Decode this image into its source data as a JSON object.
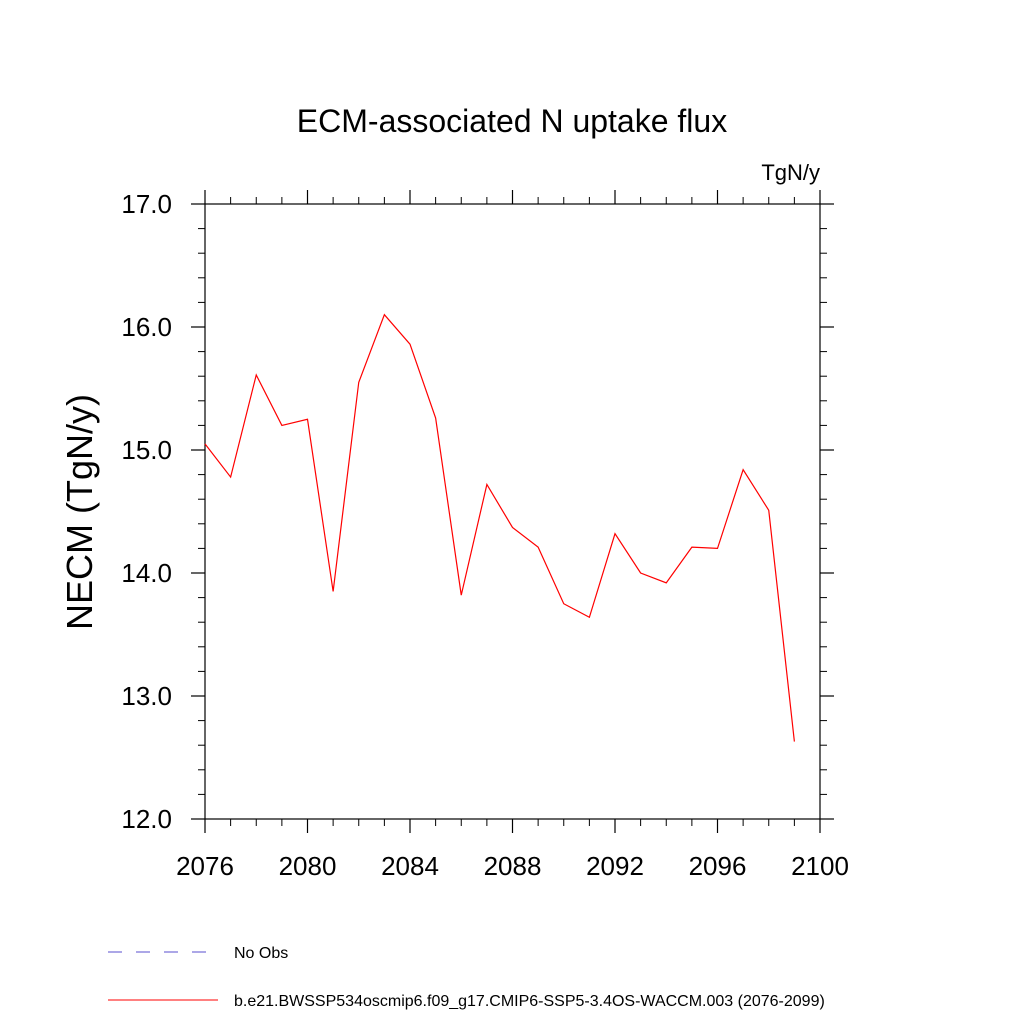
{
  "chart_data": {
    "type": "line",
    "title": "ECM-associated N uptake flux",
    "units": "TgN/y",
    "ylabel": "NECM  (TgN/y)",
    "xlabel": "",
    "xlim": [
      2076,
      2100
    ],
    "ylim": [
      12.0,
      17.0
    ],
    "xticks": [
      2076,
      2080,
      2084,
      2088,
      2092,
      2096,
      2100
    ],
    "xtick_labels": [
      "2076",
      "2080",
      "2084",
      "2088",
      "2092",
      "2096",
      "2100"
    ],
    "yticks": [
      12.0,
      13.0,
      14.0,
      15.0,
      16.0,
      17.0
    ],
    "ytick_labels": [
      "12.0",
      "13.0",
      "14.0",
      "15.0",
      "16.0",
      "17.0"
    ],
    "grid": false,
    "legend_position": "bottom",
    "series": [
      {
        "name": "b.e21.BWSSP534oscmip6.f09_g17.CMIP6-SSP5-3.4OS-WACCM.003 (2076-2099)",
        "color": "#ff0000",
        "dash": "solid",
        "x": [
          2076,
          2077,
          2078,
          2079,
          2080,
          2081,
          2082,
          2083,
          2084,
          2085,
          2086,
          2087,
          2088,
          2089,
          2090,
          2091,
          2092,
          2093,
          2094,
          2095,
          2096,
          2097,
          2098,
          2099
        ],
        "values": [
          15.05,
          14.78,
          15.61,
          15.2,
          15.25,
          13.85,
          15.55,
          16.1,
          15.86,
          15.26,
          13.82,
          14.72,
          14.37,
          14.21,
          13.75,
          13.64,
          14.32,
          14.0,
          13.92,
          14.21,
          14.2,
          14.84,
          14.51,
          12.63
        ]
      }
    ],
    "legend": [
      {
        "label": "No Obs",
        "color": "#5a4fcf",
        "dash": "dashed"
      },
      {
        "label": "b.e21.BWSSP534oscmip6.f09_g17.CMIP6-SSP5-3.4OS-WACCM.003 (2076-2099)",
        "color": "#ff0000",
        "dash": "solid"
      }
    ]
  }
}
